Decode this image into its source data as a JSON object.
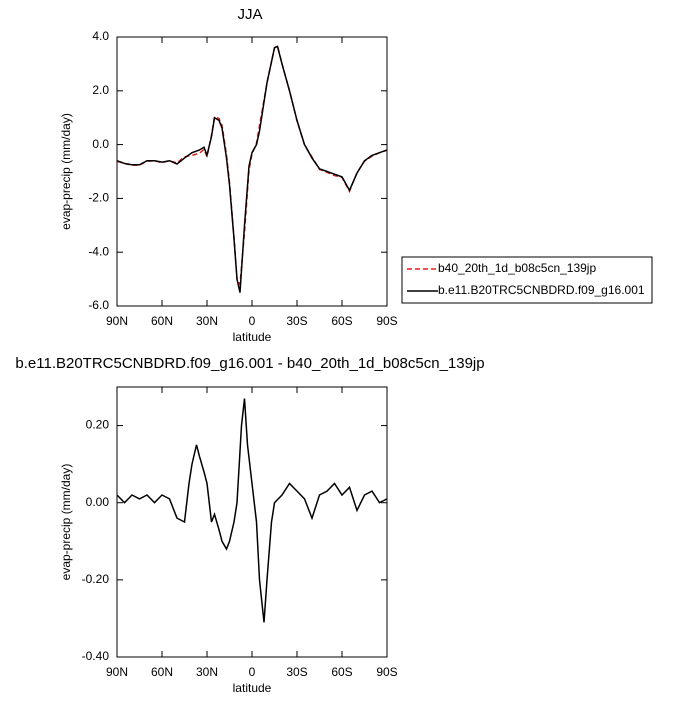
{
  "chart_data": [
    {
      "type": "line",
      "title": "JJA",
      "xlabel": "latitude",
      "ylabel": "evap-precip (mm/day)",
      "x": [
        90,
        85,
        80,
        75,
        70,
        65,
        60,
        55,
        50,
        45,
        40,
        35,
        32,
        30,
        27,
        25,
        22,
        20,
        17,
        15,
        12,
        10,
        8,
        5,
        2,
        0,
        -3,
        -5,
        -10,
        -15,
        -17,
        -20,
        -25,
        -30,
        -35,
        -40,
        -45,
        -50,
        -55,
        -60,
        -65,
        -70,
        -75,
        -80,
        -85,
        -90
      ],
      "xlim": [
        90,
        -90
      ],
      "xticks": [
        {
          "value": 90,
          "label": "90N"
        },
        {
          "value": 60,
          "label": "60N"
        },
        {
          "value": 30,
          "label": "30N"
        },
        0,
        {
          "value": -30,
          "label": "30S"
        },
        {
          "value": -60,
          "label": "60S"
        },
        {
          "value": -90,
          "label": "90S"
        }
      ],
      "ylim": [
        -6,
        4
      ],
      "yticks": [
        {
          "value": 4,
          "label": "4.0"
        },
        {
          "value": 2,
          "label": "2.0"
        },
        {
          "value": 0,
          "label": "0.0"
        },
        {
          "value": -2,
          "label": "-2.0"
        },
        {
          "value": -4,
          "label": "-4.0"
        },
        {
          "value": -6,
          "label": "-6.0"
        }
      ],
      "legend": "right",
      "series": [
        {
          "name": "b40_20th_1d_b08c5cn_139jp",
          "color": "#e0201b",
          "line_style": "dashed",
          "values": [
            -0.62,
            -0.7,
            -0.77,
            -0.76,
            -0.62,
            -0.6,
            -0.67,
            -0.6,
            -0.68,
            -0.45,
            -0.4,
            -0.32,
            -0.18,
            -0.45,
            0.35,
            1.03,
            0.97,
            0.72,
            -0.38,
            -1.4,
            -3.45,
            -5.0,
            -5.2,
            -3.27,
            -0.95,
            -0.35,
            0.05,
            0.7,
            2.3,
            3.6,
            3.67,
            3.0,
            2.0,
            0.88,
            -0.01,
            -0.46,
            -0.92,
            -1.03,
            -1.15,
            -1.22,
            -1.74,
            -1.04,
            -0.62,
            -0.43,
            -0.3,
            -0.21
          ]
        },
        {
          "name": "b.e11.B20TRC5CNBDRD.f09_g16.001",
          "color": "#000000",
          "line_style": "solid",
          "values": [
            -0.6,
            -0.7,
            -0.75,
            -0.75,
            -0.6,
            -0.6,
            -0.65,
            -0.6,
            -0.72,
            -0.5,
            -0.3,
            -0.2,
            -0.1,
            -0.4,
            0.3,
            1.0,
            0.9,
            0.62,
            -0.5,
            -1.5,
            -3.5,
            -5.0,
            -5.5,
            -3.0,
            -0.8,
            -0.3,
            0.0,
            0.5,
            2.3,
            3.6,
            3.65,
            3.0,
            2.0,
            0.9,
            0.0,
            -0.5,
            -0.9,
            -1.0,
            -1.1,
            -1.2,
            -1.7,
            -1.06,
            -0.6,
            -0.4,
            -0.3,
            -0.2
          ]
        }
      ]
    },
    {
      "type": "line",
      "title": "b.e11.B20TRC5CNBDRD.f09_g16.001 - b40_20th_1d_b08c5cn_139jp",
      "xlabel": "latitude",
      "ylabel": "evap-precip (mm/day)",
      "x": [
        90,
        85,
        80,
        75,
        70,
        65,
        60,
        55,
        50,
        45,
        42,
        40,
        37,
        35,
        32,
        30,
        27,
        25,
        22,
        20,
        17,
        15,
        12,
        10,
        7,
        5,
        3,
        0,
        -3,
        -5,
        -8,
        -10,
        -13,
        -15,
        -20,
        -25,
        -30,
        -35,
        -40,
        -45,
        -50,
        -55,
        -60,
        -65,
        -70,
        -75,
        -80,
        -85,
        -90
      ],
      "xlim": [
        90,
        -90
      ],
      "xticks": [
        {
          "value": 90,
          "label": "90N"
        },
        {
          "value": 60,
          "label": "60N"
        },
        {
          "value": 30,
          "label": "30N"
        },
        0,
        {
          "value": -30,
          "label": "30S"
        },
        {
          "value": -60,
          "label": "60S"
        },
        {
          "value": -90,
          "label": "90S"
        }
      ],
      "ylim": [
        -0.4,
        0.3
      ],
      "yticks": [
        {
          "value": 0.2,
          "label": "0.20"
        },
        {
          "value": 0,
          "label": "0.00"
        },
        {
          "value": -0.2,
          "label": "-0.20"
        },
        {
          "value": -0.4,
          "label": "-0.40"
        }
      ],
      "series": [
        {
          "color": "#000000",
          "line_style": "solid",
          "values": [
            0.02,
            0.0,
            0.02,
            0.01,
            0.02,
            0.0,
            0.02,
            0.01,
            -0.04,
            -0.05,
            0.05,
            0.1,
            0.15,
            0.12,
            0.08,
            0.05,
            -0.05,
            -0.03,
            -0.07,
            -0.1,
            -0.12,
            -0.1,
            -0.05,
            0.0,
            0.2,
            0.27,
            0.15,
            0.05,
            -0.05,
            -0.2,
            -0.31,
            -0.2,
            -0.05,
            0.0,
            0.02,
            0.05,
            0.03,
            0.01,
            -0.04,
            0.02,
            0.03,
            0.05,
            0.02,
            0.04,
            -0.02,
            0.02,
            0.03,
            0.0,
            0.01
          ]
        }
      ]
    }
  ]
}
